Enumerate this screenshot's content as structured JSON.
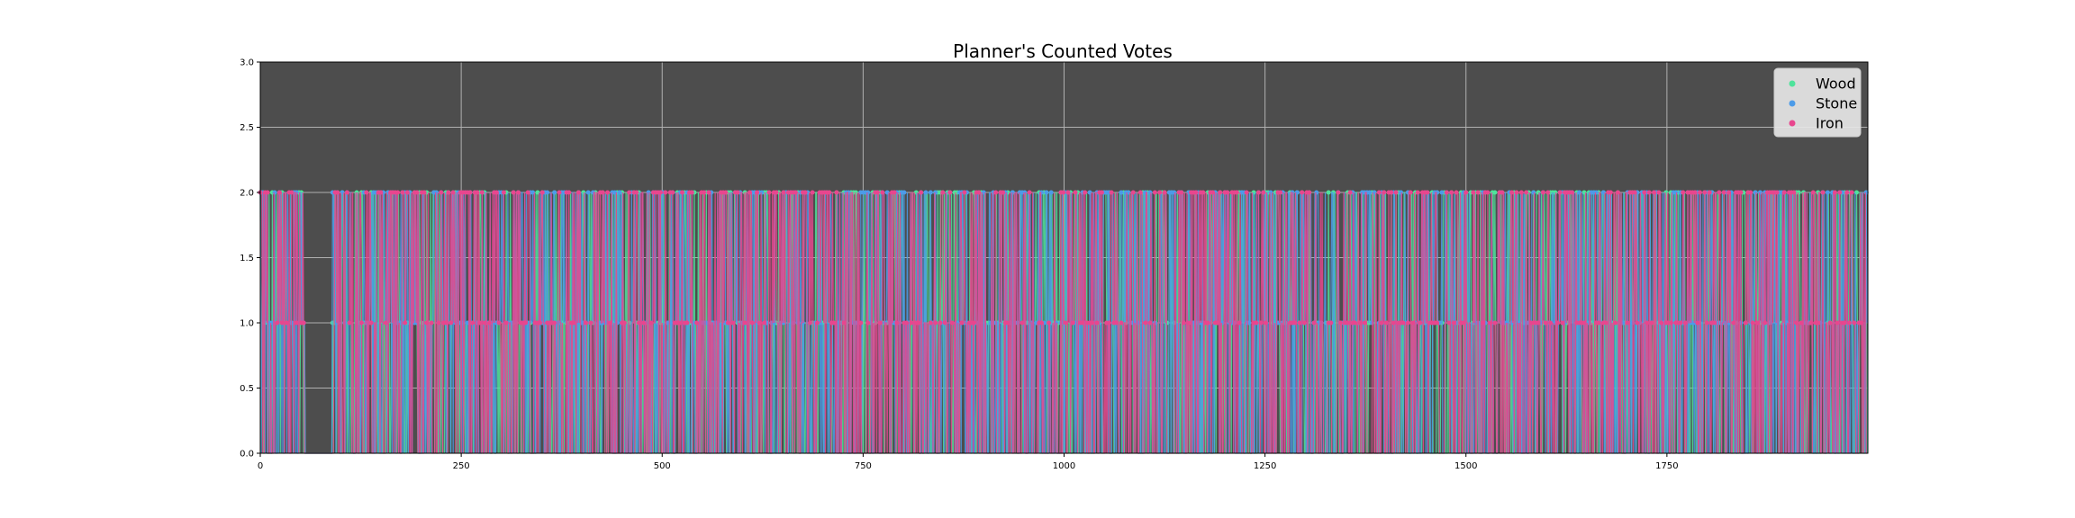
{
  "chart_data": {
    "type": "line",
    "title": "Planner's Counted Votes",
    "xlabel": "",
    "ylabel": "",
    "xlim": [
      0,
      2000
    ],
    "ylim": [
      0,
      3
    ],
    "x_ticks": [
      0,
      250,
      500,
      750,
      1000,
      1250,
      1500,
      1750
    ],
    "x_tick_labels": [
      "0",
      "250",
      "500",
      "750",
      "1000",
      "1250",
      "1500",
      "1750"
    ],
    "y_ticks": [
      0,
      0.5,
      1,
      1.5,
      2,
      2.5,
      3
    ],
    "y_tick_labels": [
      "0.0",
      "0.5",
      "1.0",
      "1.5",
      "2.0",
      "2.5",
      "3.0"
    ],
    "grid": true,
    "legend_position": "top-right",
    "background_color": "#4d4d4d",
    "series": [
      {
        "name": "Wood",
        "color": "#4ee39b",
        "value_levels": [
          0,
          1,
          2
        ]
      },
      {
        "name": "Stone",
        "color": "#4c9be8",
        "value_levels": [
          0,
          1,
          2
        ]
      },
      {
        "name": "Iron",
        "color": "#e8468e",
        "value_levels": [
          0,
          1,
          2
        ]
      }
    ],
    "x_step": 1,
    "x_count": 2000
  }
}
